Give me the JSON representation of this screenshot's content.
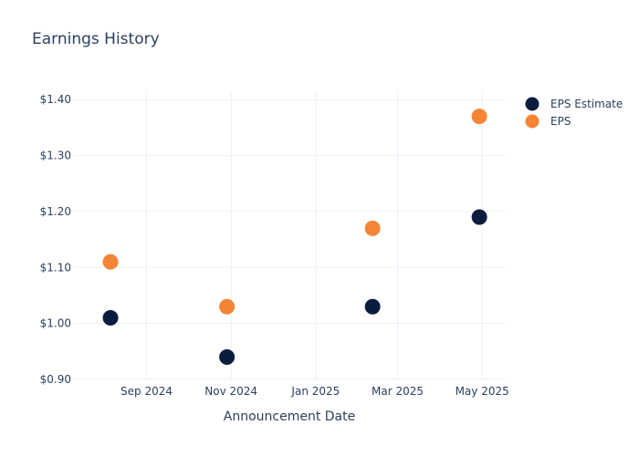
{
  "chart_data": {
    "type": "scatter",
    "title": "Earnings History",
    "xlabel": "Announcement Date",
    "ylabel": "",
    "xlim": [
      "2024-07-10",
      "2025-05-18"
    ],
    "ylim": [
      0.9,
      1.415
    ],
    "grid": true,
    "legend_position": "top-right",
    "x_ticks": [
      {
        "date": "2024-09-01",
        "label": "Sep 2024"
      },
      {
        "date": "2024-11-01",
        "label": "Nov 2024"
      },
      {
        "date": "2025-01-01",
        "label": "Jan 2025"
      },
      {
        "date": "2025-03-01",
        "label": "Mar 2025"
      },
      {
        "date": "2025-05-01",
        "label": "May 2025"
      }
    ],
    "y_ticks": [
      {
        "value": 0.9,
        "label": "$0.90"
      },
      {
        "value": 1.0,
        "label": "$1.00"
      },
      {
        "value": 1.1,
        "label": "$1.10"
      },
      {
        "value": 1.2,
        "label": "$1.20"
      },
      {
        "value": 1.3,
        "label": "$1.30"
      },
      {
        "value": 1.4,
        "label": "$1.40"
      }
    ],
    "series": [
      {
        "name": "EPS Estimate",
        "color": "#0b1d3f",
        "points": [
          {
            "x": "2024-08-06",
            "y": 1.01
          },
          {
            "x": "2024-10-29",
            "y": 0.94
          },
          {
            "x": "2025-02-11",
            "y": 1.03
          },
          {
            "x": "2025-04-29",
            "y": 1.19
          }
        ]
      },
      {
        "name": "EPS",
        "color": "#f58536",
        "points": [
          {
            "x": "2024-08-06",
            "y": 1.11
          },
          {
            "x": "2024-10-29",
            "y": 1.03
          },
          {
            "x": "2025-02-11",
            "y": 1.17
          },
          {
            "x": "2025-04-29",
            "y": 1.37
          }
        ]
      }
    ]
  }
}
